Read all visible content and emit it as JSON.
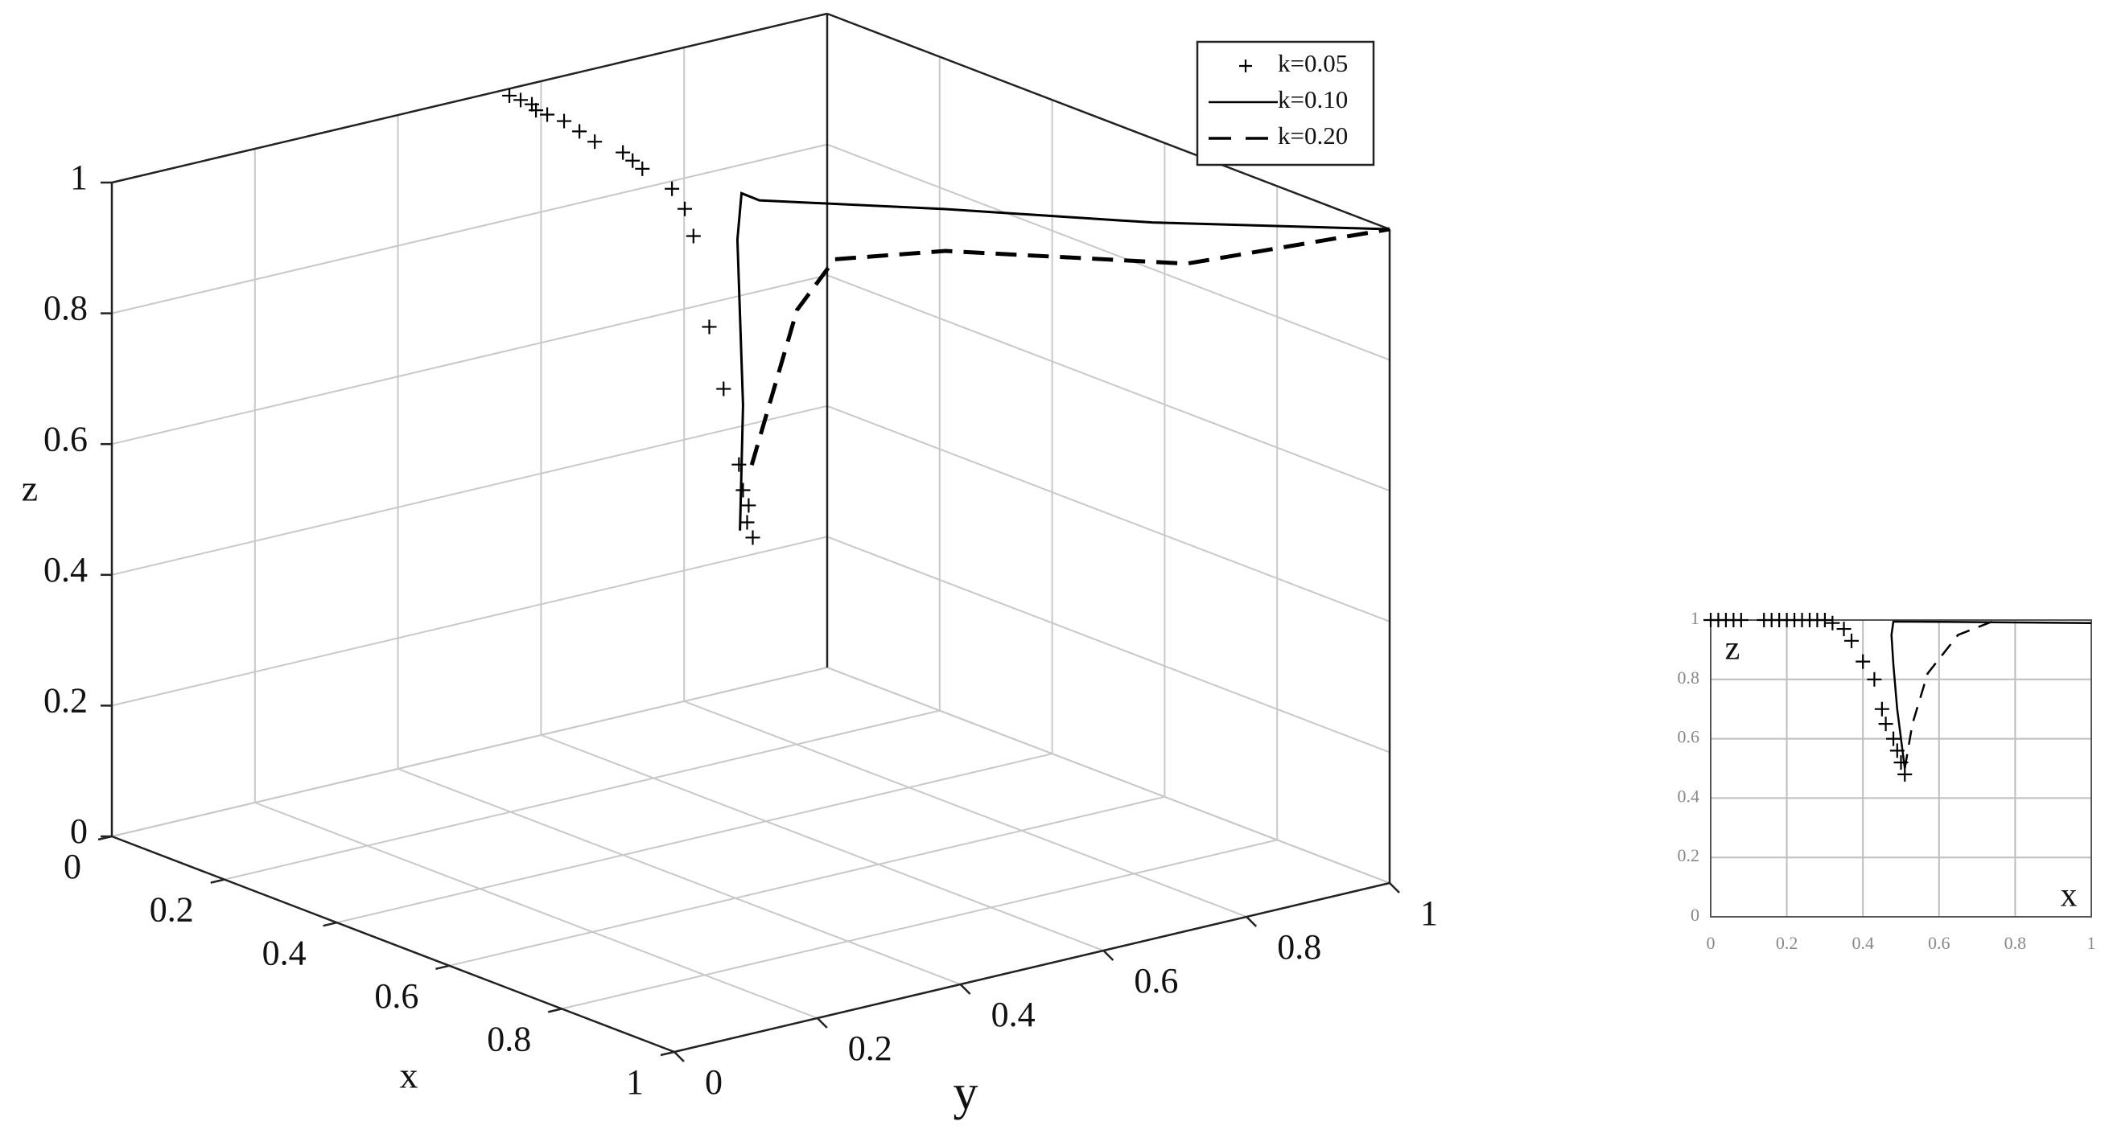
{
  "chart_data": [
    {
      "type": "line3d",
      "xlabel": "x",
      "ylabel": "y",
      "zlabel": "z",
      "xlim": [
        0,
        1
      ],
      "ylim": [
        0,
        1
      ],
      "zlim": [
        0,
        1
      ],
      "xticks": [
        0,
        0.2,
        0.4,
        0.6,
        0.8,
        1
      ],
      "yticks": [
        0,
        0.2,
        0.4,
        0.6,
        0.8,
        1
      ],
      "zticks": [
        0,
        0.2,
        0.4,
        0.6,
        0.8,
        1
      ],
      "grid": true,
      "legend": "upper right",
      "series": [
        {
          "name": "k=0.05",
          "color": "#000000",
          "style": "markers",
          "x": [
            0.02,
            0.04,
            0.06,
            0.08,
            0.1,
            0.13,
            0.17,
            0.21,
            0.26,
            0.29,
            0.32,
            0.36,
            0.37,
            0.36,
            0.35,
            0.35,
            0.39,
            0.41,
            0.42,
            0.43,
            0.44
          ],
          "y": [
            0.54,
            0.54,
            0.54,
            0.53,
            0.53,
            0.53,
            0.52,
            0.51,
            0.51,
            0.5,
            0.49,
            0.5,
            0.51,
            0.53,
            0.56,
            0.58,
            0.57,
            0.56,
            0.56,
            0.55,
            0.55
          ],
          "z": [
            1,
            1,
            1,
            1,
            1,
            1,
            1,
            1,
            1,
            1,
            1,
            0.98,
            0.95,
            0.9,
            0.75,
            0.65,
            0.55,
            0.52,
            0.5,
            0.48,
            0.46
          ]
        },
        {
          "name": "k=0.10",
          "color": "#000000",
          "style": "solid",
          "x": [
            0.43,
            0.41,
            0.4,
            0.42,
            0.49,
            0.64,
            0.82,
            1
          ],
          "y": [
            0.54,
            0.56,
            0.56,
            0.55,
            0.52,
            0.66,
            0.81,
            1
          ],
          "z": [
            0.47,
            0.65,
            0.9,
            0.98,
            1,
            1,
            1,
            1
          ]
        },
        {
          "name": "k=0.20",
          "color": "#000000",
          "style": "dashed",
          "x": [
            0.4,
            0.455,
            0.56,
            0.63,
            0.83,
            1
          ],
          "y": [
            0.58,
            0.6,
            0.57,
            0.67,
            0.85,
            1
          ],
          "z": [
            0.55,
            0.8,
            0.92,
            0.93,
            0.93,
            1
          ]
        }
      ]
    },
    {
      "type": "line",
      "xlabel": "x",
      "ylabel": "z",
      "xlim": [
        0,
        1
      ],
      "ylim": [
        0,
        1
      ],
      "xticks": [
        0,
        0.2,
        0.4,
        0.6,
        0.8,
        1
      ],
      "yticks": [
        0,
        0.2,
        0.4,
        0.6,
        0.8,
        1
      ],
      "grid": true,
      "series": [
        {
          "color": "#000000",
          "style": "markers",
          "x": [
            0.0,
            0.02,
            0.04,
            0.06,
            0.08,
            0.14,
            0.16,
            0.18,
            0.2,
            0.22,
            0.24,
            0.26,
            0.28,
            0.3,
            0.32,
            0.35,
            0.37,
            0.4,
            0.43,
            0.45,
            0.46,
            0.48,
            0.49,
            0.5,
            0.51
          ],
          "values": [
            1,
            1,
            1,
            1,
            1,
            1,
            1,
            1,
            1,
            1,
            1,
            1,
            1,
            1,
            0.99,
            0.97,
            0.93,
            0.86,
            0.8,
            0.7,
            0.65,
            0.6,
            0.56,
            0.52,
            0.48
          ]
        },
        {
          "color": "#000000",
          "style": "solid",
          "x": [
            0.51,
            0.49,
            0.48,
            0.475,
            0.48,
            1
          ],
          "values": [
            0.5,
            0.7,
            0.85,
            0.95,
            0.995,
            0.99
          ]
        },
        {
          "color": "#000000",
          "style": "dashed",
          "x": [
            0.51,
            0.53,
            0.57,
            0.65,
            0.75
          ],
          "values": [
            0.5,
            0.65,
            0.82,
            0.95,
            1
          ]
        }
      ]
    }
  ]
}
